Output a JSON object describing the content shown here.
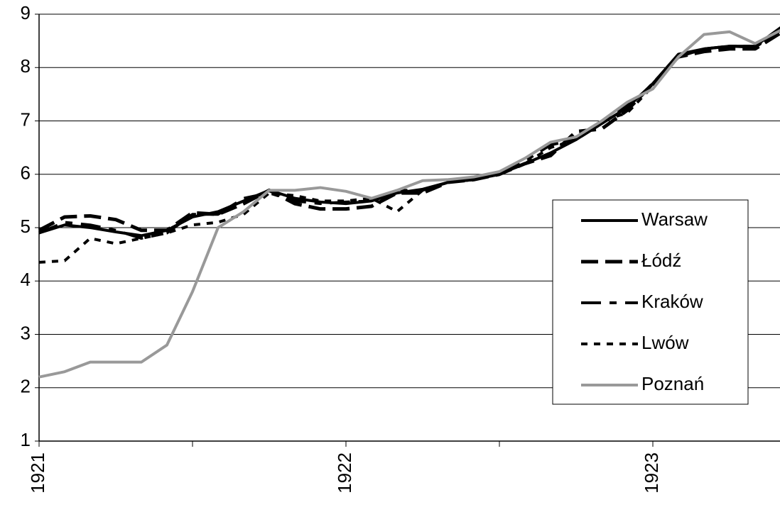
{
  "chart_data": {
    "type": "line",
    "categories": [
      "1921",
      null,
      null,
      null,
      null,
      null,
      null,
      null,
      null,
      null,
      null,
      null,
      "1922",
      null,
      null,
      null,
      null,
      null,
      null,
      null,
      null,
      null,
      null,
      null,
      "1923",
      null,
      null,
      null,
      null,
      null
    ],
    "ylim": [
      1,
      9
    ],
    "yticks": [
      1,
      2,
      3,
      4,
      5,
      6,
      7,
      8,
      9
    ],
    "grid": true,
    "legend": "right",
    "series": [
      {
        "name": "Warsaw",
        "color": "#000000",
        "dash": "none",
        "values": [
          4.9,
          5.05,
          5.0,
          4.92,
          4.85,
          4.95,
          5.2,
          5.3,
          5.5,
          5.7,
          5.55,
          5.48,
          5.45,
          5.5,
          5.65,
          5.72,
          5.85,
          5.9,
          6.0,
          6.2,
          6.4,
          6.65,
          6.95,
          7.25,
          7.7,
          8.25,
          8.35,
          8.4,
          8.4,
          8.75
        ]
      },
      {
        "name": "Łódź",
        "color": "#000000",
        "dash": "24 10",
        "values": [
          4.95,
          5.2,
          5.22,
          5.15,
          4.95,
          4.95,
          5.28,
          5.25,
          5.45,
          5.7,
          5.45,
          5.35,
          5.35,
          5.4,
          5.65,
          5.65,
          5.85,
          5.9,
          6.0,
          6.2,
          6.35,
          6.8,
          6.85,
          7.2,
          7.7,
          8.2,
          8.3,
          8.35,
          8.35,
          8.65
        ]
      },
      {
        "name": "Kraków",
        "color": "#000000",
        "dash": "28 12 10 12",
        "values": [
          4.9,
          5.1,
          5.05,
          4.95,
          4.8,
          4.9,
          5.25,
          5.25,
          5.55,
          5.65,
          5.5,
          5.45,
          5.48,
          5.5,
          5.7,
          5.7,
          5.85,
          5.9,
          6.02,
          6.25,
          6.55,
          6.65,
          6.95,
          7.3,
          7.65,
          8.2,
          8.35,
          8.4,
          8.38,
          8.7
        ]
      },
      {
        "name": "Lwów",
        "color": "#000000",
        "dash": "9 9",
        "values": [
          4.35,
          4.38,
          4.8,
          4.7,
          4.8,
          4.9,
          5.05,
          5.1,
          5.25,
          5.65,
          5.6,
          5.5,
          5.5,
          5.55,
          5.3,
          5.7,
          5.85,
          5.9,
          6.0,
          6.2,
          6.5,
          6.65,
          7.0,
          7.15,
          7.65,
          8.2,
          8.35,
          8.4,
          8.4,
          8.7
        ]
      },
      {
        "name": "Poznań",
        "color": "#999999",
        "dash": "none",
        "values": [
          2.2,
          2.3,
          2.48,
          2.48,
          2.48,
          2.8,
          3.8,
          5.0,
          5.3,
          5.7,
          5.7,
          5.75,
          5.68,
          5.55,
          5.7,
          5.88,
          5.9,
          5.95,
          6.05,
          6.3,
          6.6,
          6.7,
          7.0,
          7.35,
          7.6,
          8.2,
          8.62,
          8.67,
          8.45,
          8.7
        ]
      }
    ]
  }
}
